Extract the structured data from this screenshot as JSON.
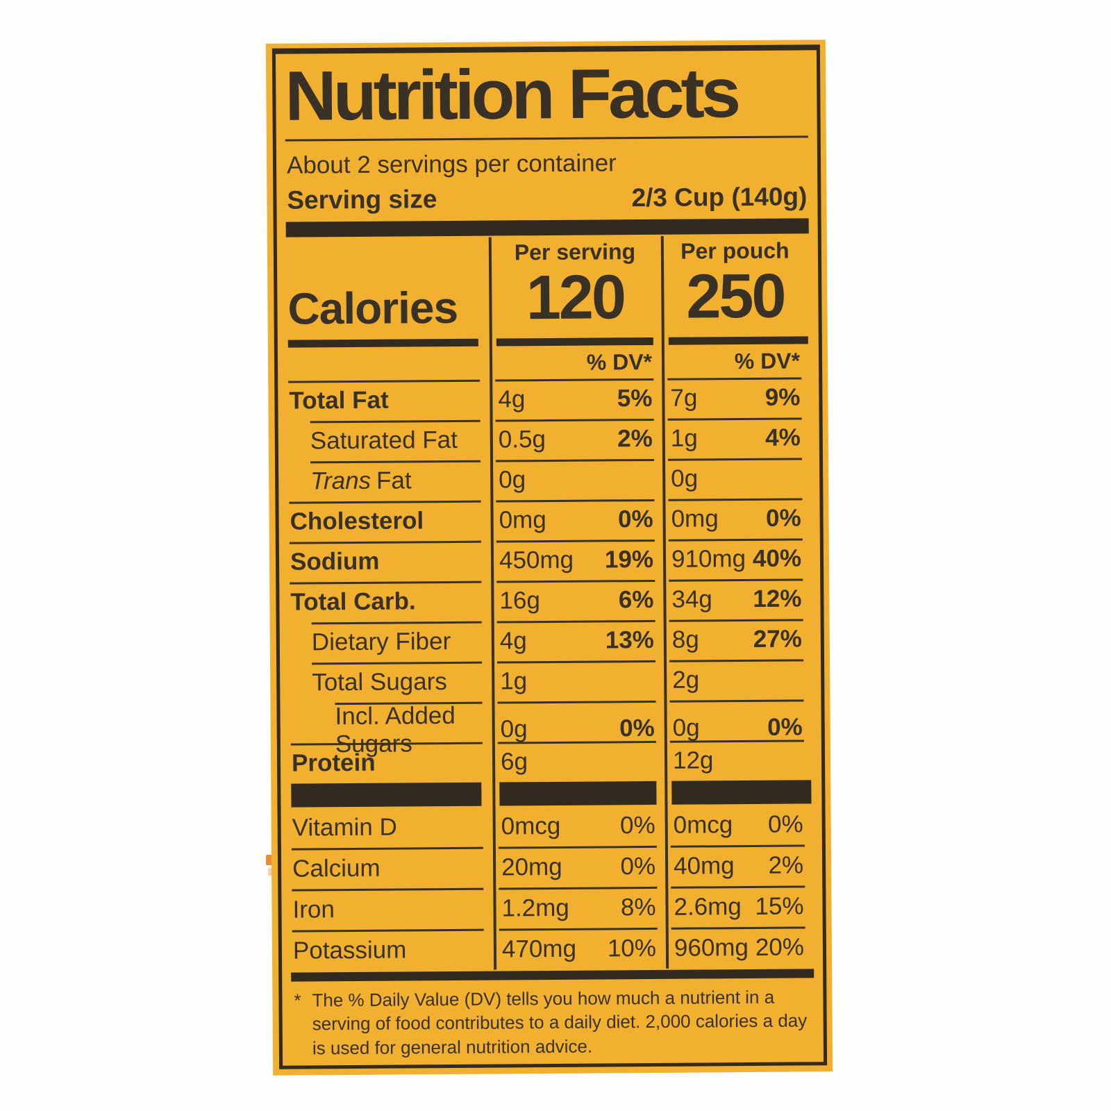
{
  "colors": {
    "label_yellow": "#f1b02f",
    "print_dark": "#3a3126",
    "bar_dark": "#332a1f",
    "stripe_orange": "#ed8b33",
    "stripe_pale": "#f6d0a8",
    "background": "#fdfdfc"
  },
  "label": {
    "title": "Nutrition Facts",
    "servings_per_container": "About 2 servings per container",
    "serving_size_label": "Serving size",
    "serving_size_value": "2/3 Cup (140g)",
    "calories": {
      "label": "Calories",
      "per_serving_header": "Per serving",
      "per_serving_value": "120",
      "per_pouch_header": "Per pouch",
      "per_pouch_value": "250",
      "dv_header": "% DV*"
    },
    "rows": [
      {
        "name": "Total Fat",
        "serving_amount": "4g",
        "serving_dv": "5%",
        "pouch_amount": "7g",
        "pouch_dv": "9%"
      },
      {
        "name": "Saturated Fat",
        "serving_amount": "0.5g",
        "serving_dv": "2%",
        "pouch_amount": "1g",
        "pouch_dv": "4%"
      },
      {
        "name_italic": "Trans",
        "name_rest": "Fat",
        "serving_amount": "0g",
        "serving_dv": "",
        "pouch_amount": "0g",
        "pouch_dv": ""
      },
      {
        "name": "Cholesterol",
        "serving_amount": "0mg",
        "serving_dv": "0%",
        "pouch_amount": "0mg",
        "pouch_dv": "0%"
      },
      {
        "name": "Sodium",
        "serving_amount": "450mg",
        "serving_dv": "19%",
        "pouch_amount": "910mg",
        "pouch_dv": "40%"
      },
      {
        "name": "Total Carb.",
        "serving_amount": "16g",
        "serving_dv": "6%",
        "pouch_amount": "34g",
        "pouch_dv": "12%"
      },
      {
        "name": "Dietary Fiber",
        "serving_amount": "4g",
        "serving_dv": "13%",
        "pouch_amount": "8g",
        "pouch_dv": "27%"
      },
      {
        "name": "Total Sugars",
        "serving_amount": "1g",
        "serving_dv": "",
        "pouch_amount": "2g",
        "pouch_dv": ""
      },
      {
        "name": "Incl. Added Sugars",
        "serving_amount": "0g",
        "serving_dv": "0%",
        "pouch_amount": "0g",
        "pouch_dv": "0%"
      },
      {
        "name": "Protein",
        "serving_amount": "6g",
        "serving_dv": "",
        "pouch_amount": "12g",
        "pouch_dv": ""
      }
    ],
    "vitamins": [
      {
        "name": "Vitamin D",
        "serving_amount": "0mcg",
        "serving_dv": "0%",
        "pouch_amount": "0mcg",
        "pouch_dv": "0%"
      },
      {
        "name": "Calcium",
        "serving_amount": "20mg",
        "serving_dv": "0%",
        "pouch_amount": "40mg",
        "pouch_dv": "2%"
      },
      {
        "name": "Iron",
        "serving_amount": "1.2mg",
        "serving_dv": "8%",
        "pouch_amount": "2.6mg",
        "pouch_dv": "15%"
      },
      {
        "name": "Potassium",
        "serving_amount": "470mg",
        "serving_dv": "10%",
        "pouch_amount": "960mg",
        "pouch_dv": "20%"
      }
    ],
    "footnote_marker": "*",
    "footnote": "The % Daily Value (DV) tells you how much a nutrient in a serving of food contributes to a daily diet. 2,000 calories a day is used for general nutrition advice."
  }
}
